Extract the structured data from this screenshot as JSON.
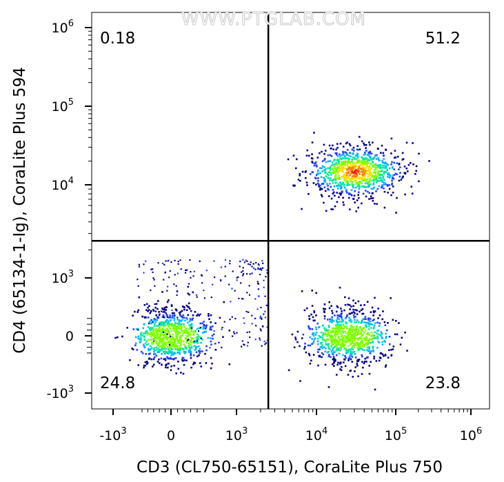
{
  "chart_data": {
    "type": "scatter",
    "watermark": "WWW.PTGLAB.COM",
    "xlabel": "CD3 (CL750-65151), CoraLite Plus 750",
    "ylabel": "CD4 (65134-1-Ig), CoraLite Plus 594",
    "x_scale": "biexponential",
    "y_scale": "biexponential",
    "x_ticks": [
      {
        "value": -1000,
        "base": "-10",
        "exp": "3"
      },
      {
        "value": 0,
        "base": "0",
        "exp": ""
      },
      {
        "value": 1000,
        "base": "10",
        "exp": "3"
      },
      {
        "value": 10000,
        "base": "10",
        "exp": "4"
      },
      {
        "value": 100000,
        "base": "10",
        "exp": "5"
      },
      {
        "value": 1000000,
        "base": "10",
        "exp": "6"
      }
    ],
    "y_ticks": [
      {
        "value": -1000,
        "base": "-10",
        "exp": "3"
      },
      {
        "value": 0,
        "base": "0",
        "exp": ""
      },
      {
        "value": 1000,
        "base": "10",
        "exp": "3"
      },
      {
        "value": 10000,
        "base": "10",
        "exp": "4"
      },
      {
        "value": 100000,
        "base": "10",
        "exp": "5"
      },
      {
        "value": 1000000,
        "base": "10",
        "exp": "6"
      }
    ],
    "quadrant_gate": {
      "x": 2500,
      "y": 2500
    },
    "quadrants": [
      {
        "position": "top-left",
        "label": "0.18"
      },
      {
        "position": "top-right",
        "label": "51.2"
      },
      {
        "position": "bottom-left",
        "label": "24.8"
      },
      {
        "position": "bottom-right",
        "label": "23.8"
      }
    ],
    "populations": [
      {
        "name": "",
        "x_center": 30000,
        "y_center": 15000,
        "x_spread": 0.3,
        "y_spread": 0.16,
        "color": "#ff2a00"
      },
      {
        "name": "",
        "x_center": 0,
        "y_center": 0,
        "x_spread": 300,
        "y_spread": 260,
        "color": "#00e060"
      },
      {
        "name": "",
        "x_center": 25000,
        "y_center": 0,
        "x_spread": 0.26,
        "y_spread": 260,
        "color": "#00e060"
      }
    ],
    "density_colormap": [
      "#00008b",
      "#1f3cff",
      "#00b4ff",
      "#00e8a0",
      "#7cff00",
      "#ffe000",
      "#ff8000",
      "#ff1a00"
    ],
    "grid": false,
    "legend": "none"
  }
}
